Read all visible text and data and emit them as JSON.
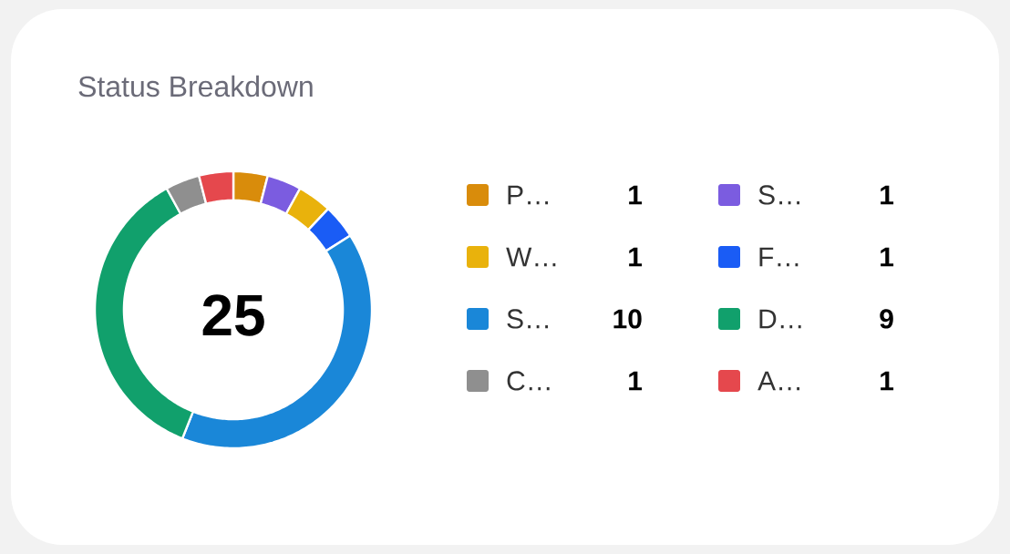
{
  "chart_data": {
    "type": "donut",
    "title": "Status Breakdown",
    "categories": [
      "P…",
      "S…",
      "W…",
      "F…",
      "S…",
      "D…",
      "C…",
      "A…"
    ],
    "values": [
      1,
      1,
      1,
      1,
      10,
      9,
      1,
      1
    ],
    "colors": [
      "#d98c0b",
      "#7b5ce0",
      "#e9b20c",
      "#1a5cf5",
      "#1a87d8",
      "#11a06c",
      "#8f8f8f",
      "#e5484d"
    ],
    "data_labels": true,
    "legend": "right",
    "annotations": [
      "25"
    ]
  }
}
